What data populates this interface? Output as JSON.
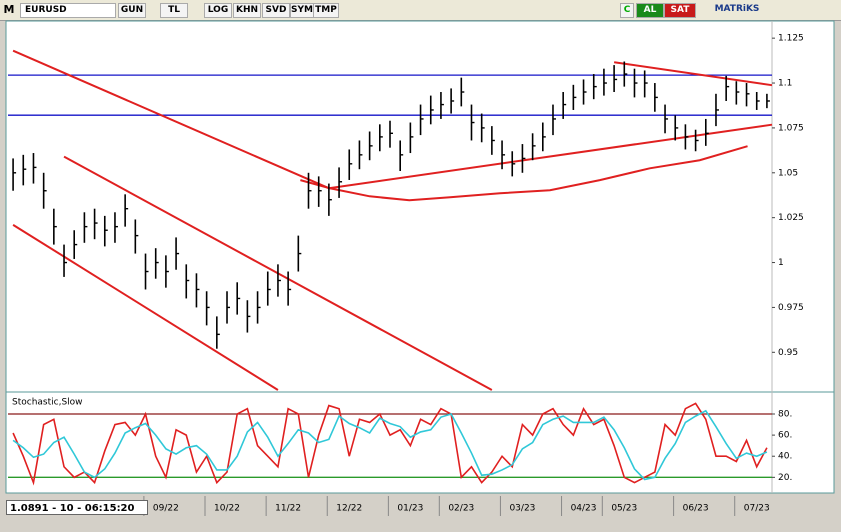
{
  "toolbar": {
    "logo": "M",
    "symbol": "EURUSD",
    "buttons": [
      "GUN",
      "TL",
      "LOG",
      "KHN",
      "SVD",
      "SYM",
      "TMP"
    ],
    "refresh": "C",
    "buy": "AL",
    "sell": "SAT",
    "brand": "MATRiKS"
  },
  "status": "1.0891 - 10 - 06:15:20",
  "chart_data": [
    {
      "type": "hlc",
      "bar_color": "#000000",
      "categories": [
        null,
        null,
        null,
        null,
        null,
        null,
        null,
        null,
        null,
        null,
        null,
        null,
        null,
        null,
        null,
        "09/22",
        null,
        null,
        null,
        null,
        null,
        "10/22",
        null,
        null,
        null,
        null,
        null,
        "11/22",
        null,
        null,
        null,
        null,
        null,
        "12/22",
        null,
        null,
        null,
        null,
        null,
        "01/23",
        null,
        null,
        null,
        null,
        "02/23",
        null,
        null,
        null,
        null,
        null,
        "03/23",
        null,
        null,
        null,
        null,
        null,
        "04/23",
        null,
        null,
        null,
        "05/23",
        null,
        null,
        null,
        null,
        null,
        null,
        "06/23",
        null,
        null,
        null,
        null,
        null,
        "07/23",
        null
      ],
      "high": [
        1.058,
        1.06,
        1.061,
        1.05,
        1.03,
        1.01,
        1.018,
        1.028,
        1.03,
        1.026,
        1.028,
        1.038,
        1.024,
        1.005,
        1.008,
        1.004,
        1.014,
        0.999,
        0.994,
        0.984,
        0.97,
        0.984,
        0.989,
        0.979,
        0.984,
        0.995,
        0.999,
        0.995,
        1.015,
        1.05,
        1.048,
        1.044,
        1.053,
        1.063,
        1.068,
        1.073,
        1.077,
        1.079,
        1.068,
        1.078,
        1.088,
        1.093,
        1.095,
        1.097,
        1.103,
        1.088,
        1.083,
        1.076,
        1.068,
        1.062,
        1.066,
        1.072,
        1.078,
        1.088,
        1.095,
        1.099,
        1.102,
        1.105,
        1.108,
        1.11,
        1.112,
        1.108,
        1.107,
        1.1,
        1.088,
        1.082,
        1.077,
        1.074,
        1.08,
        1.094,
        1.104,
        1.101,
        1.1,
        1.095,
        1.094
      ],
      "low": [
        1.04,
        1.043,
        1.044,
        1.03,
        1.01,
        0.992,
        1.002,
        1.011,
        1.013,
        1.009,
        1.011,
        1.02,
        1.005,
        0.985,
        0.991,
        0.986,
        0.996,
        0.98,
        0.975,
        0.965,
        0.952,
        0.966,
        0.971,
        0.961,
        0.966,
        0.976,
        0.981,
        0.976,
        0.995,
        1.03,
        1.031,
        1.026,
        1.036,
        1.046,
        1.052,
        1.057,
        1.062,
        1.064,
        1.051,
        1.061,
        1.071,
        1.077,
        1.08,
        1.083,
        1.087,
        1.068,
        1.067,
        1.06,
        1.052,
        1.048,
        1.05,
        1.057,
        1.062,
        1.071,
        1.08,
        1.085,
        1.088,
        1.091,
        1.093,
        1.095,
        1.098,
        1.092,
        1.092,
        1.084,
        1.072,
        1.068,
        1.063,
        1.062,
        1.065,
        1.076,
        1.09,
        1.088,
        1.087,
        1.085,
        1.086
      ],
      "close": [
        1.05,
        1.052,
        1.053,
        1.04,
        1.02,
        1.0,
        1.01,
        1.02,
        1.022,
        1.018,
        1.02,
        1.03,
        1.015,
        0.995,
        1.0,
        0.995,
        1.005,
        0.99,
        0.985,
        0.975,
        0.96,
        0.975,
        0.98,
        0.97,
        0.975,
        0.985,
        0.99,
        0.985,
        1.005,
        1.04,
        1.04,
        1.035,
        1.045,
        1.055,
        1.06,
        1.065,
        1.07,
        1.072,
        1.06,
        1.07,
        1.08,
        1.085,
        1.088,
        1.09,
        1.095,
        1.078,
        1.075,
        1.068,
        1.06,
        1.055,
        1.058,
        1.065,
        1.07,
        1.08,
        1.088,
        1.092,
        1.095,
        1.098,
        1.1,
        1.102,
        1.105,
        1.1,
        1.1,
        1.092,
        1.08,
        1.075,
        1.07,
        1.068,
        1.072,
        1.085,
        1.098,
        1.095,
        1.094,
        1.09,
        1.09
      ],
      "ylim": [
        0.929,
        1.134
      ],
      "yticks": [
        1.125,
        1.1,
        1.075,
        1.05,
        1.025,
        1,
        0.975,
        0.95
      ],
      "hlines": [
        {
          "value": 1.1044,
          "color": "#1414c8"
        },
        {
          "value": 1.0821,
          "color": "#1414c8"
        }
      ],
      "overlays": [
        {
          "color": "#e02020",
          "points": [
            [
              0,
              1.118
            ],
            [
              31,
              1.0414
            ]
          ]
        },
        {
          "color": "#e02020",
          "points": [
            [
              5,
              1.059
            ],
            [
              47,
              0.929
            ]
          ]
        },
        {
          "color": "#e02020",
          "points": [
            [
              0,
              1.021
            ],
            [
              26,
              0.929
            ]
          ]
        },
        {
          "color": "#e02020",
          "points": [
            [
              31,
              1.0414
            ],
            [
              74.5,
              1.0768
            ]
          ]
        },
        {
          "color": "#e02020",
          "points": [
            [
              59,
              1.1116
            ],
            [
              74.5,
              1.0988
            ]
          ]
        },
        {
          "color": "#e02020",
          "points": [
            [
              28.2,
              1.0459
            ],
            [
              31.1,
              1.0414
            ],
            [
              35,
              1.0369
            ],
            [
              38.9,
              1.0347
            ],
            [
              42.9,
              1.0364
            ],
            [
              47.8,
              1.0386
            ],
            [
              52.7,
              1.0403
            ],
            [
              57.6,
              1.0459
            ],
            [
              62.5,
              1.0525
            ],
            [
              67.4,
              1.057
            ],
            [
              72.1,
              1.0648
            ]
          ]
        }
      ]
    },
    {
      "type": "line",
      "title": "Stochastic,Slow",
      "series": [
        {
          "color": "#e02020",
          "values": [
            62,
            40,
            15,
            70,
            75,
            30,
            20,
            25,
            15,
            45,
            70,
            72,
            60,
            80,
            40,
            20,
            65,
            60,
            25,
            40,
            15,
            25,
            80,
            85,
            50,
            40,
            30,
            85,
            80,
            20,
            60,
            88,
            85,
            40,
            75,
            72,
            80,
            60,
            65,
            50,
            75,
            70,
            85,
            80,
            20,
            30,
            15,
            25,
            40,
            30,
            70,
            60,
            80,
            85,
            70,
            60,
            85,
            70,
            75,
            50,
            20,
            15,
            20,
            25,
            70,
            60,
            85,
            90,
            75,
            40,
            40,
            35,
            55,
            30,
            48
          ]
        },
        {
          "color": "#30c8d8",
          "values": [
            55,
            48,
            39,
            42,
            53,
            58,
            42,
            25,
            20,
            28,
            43,
            62,
            67,
            71,
            60,
            47,
            42,
            48,
            50,
            42,
            27,
            27,
            40,
            63,
            72,
            58,
            40,
            52,
            65,
            62,
            53,
            56,
            78,
            71,
            67,
            62,
            76,
            71,
            68,
            58,
            63,
            65,
            77,
            80,
            62,
            43,
            22,
            23,
            27,
            32,
            47,
            53,
            70,
            75,
            78,
            72,
            72,
            72,
            77,
            65,
            48,
            28,
            18,
            20,
            38,
            52,
            72,
            78,
            83,
            68,
            52,
            38,
            43,
            40,
            44
          ]
        }
      ],
      "ylim": [
        8,
        98
      ],
      "yticks": [
        {
          "value": 80,
          "label": "80."
        },
        {
          "value": 60,
          "label": "60."
        },
        {
          "value": 40,
          "label": "40."
        },
        {
          "value": 20,
          "label": "20."
        }
      ],
      "levels": [
        {
          "value": 80,
          "color": "#8b1a1a"
        },
        {
          "value": 20,
          "color": "#2a9a2a"
        }
      ]
    }
  ]
}
